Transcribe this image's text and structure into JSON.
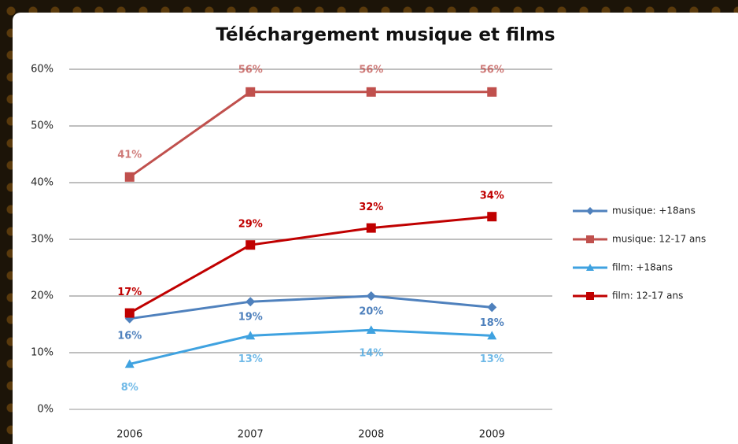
{
  "chart_data": {
    "type": "line",
    "title": "Téléchargement musique et films",
    "categories": [
      "2006",
      "2007",
      "2008",
      "2009"
    ],
    "series": [
      {
        "name": "musique: +18ans",
        "color": "#4f81bd",
        "marker": "diamond",
        "values": [
          16,
          19,
          20,
          18
        ],
        "value_labels": [
          "16%",
          "19%",
          "20%",
          "18%"
        ]
      },
      {
        "name": "musique: 12-17 ans",
        "color": "#c0504d",
        "marker": "square",
        "values": [
          41,
          56,
          56,
          56
        ],
        "value_labels": [
          "41%",
          "56%",
          "56%",
          "56%"
        ]
      },
      {
        "name": "film: +18ans",
        "color": "#3fa2e0",
        "marker": "triangle",
        "values": [
          8,
          13,
          14,
          13
        ],
        "value_labels": [
          "8%",
          "13%",
          "14%",
          "13%"
        ]
      },
      {
        "name": "film: 12-17 ans",
        "color": "#c00000",
        "marker": "square",
        "values": [
          17,
          29,
          32,
          34
        ],
        "value_labels": [
          "17%",
          "29%",
          "32%",
          "34%"
        ]
      }
    ],
    "ylim": [
      0,
      60
    ],
    "yticks": [
      {
        "value": 0,
        "label": "0%"
      },
      {
        "value": 10,
        "label": "10%"
      },
      {
        "value": 20,
        "label": "20%"
      },
      {
        "value": 30,
        "label": "30%"
      },
      {
        "value": 40,
        "label": "40%"
      },
      {
        "value": 50,
        "label": "50%"
      },
      {
        "value": 60,
        "label": "60%"
      }
    ],
    "grid": true,
    "legend": "right"
  }
}
